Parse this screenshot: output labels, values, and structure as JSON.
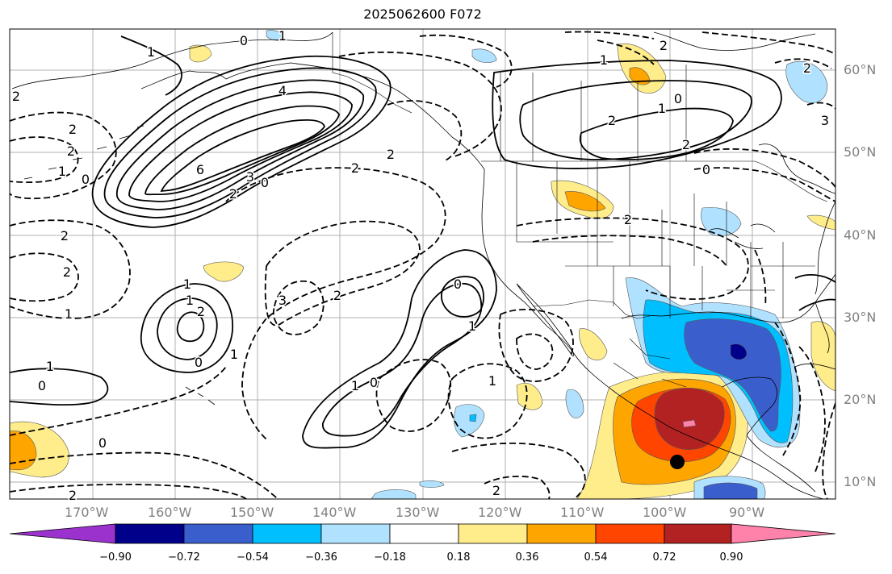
{
  "title": "2025062600 F072",
  "lat_labels": [
    "60°N",
    "50°N",
    "40°N",
    "30°N",
    "20°N",
    "10°N"
  ],
  "lon_labels": [
    "170°W",
    "160°W",
    "150°W",
    "140°W",
    "130°W",
    "120°W",
    "110°W",
    "100°W",
    "90°W"
  ],
  "contour_labels": [
    "0",
    "1",
    "2",
    "1",
    "2",
    "4",
    "6",
    "2",
    "3",
    "0",
    "2",
    "2",
    "2",
    "1",
    "0",
    "2",
    "2",
    "1",
    "1",
    "3",
    "2",
    "0",
    "2",
    "3",
    "2",
    "1",
    "0",
    "1",
    "0",
    "1",
    "2",
    "1",
    "0",
    "1",
    "0",
    "1",
    "0",
    "2",
    "2",
    "1",
    "0",
    "2",
    "2",
    "1",
    "2"
  ],
  "colorbar": {
    "ticks": [
      "−0.90",
      "−0.72",
      "−0.54",
      "−0.36",
      "−0.18",
      "0.18",
      "0.36",
      "0.54",
      "0.72",
      "0.90"
    ],
    "colors": [
      "#9b32cd",
      "#00008b",
      "#3a5fcd",
      "#00bfff",
      "#b0e2ff",
      "#ffffff",
      "#ffec8b",
      "#ffa500",
      "#ff4500",
      "#b22222",
      "#ff82ab"
    ]
  },
  "fill_colors": {
    "neg1": "#b0e2ff",
    "neg2": "#00bfff",
    "neg3": "#3a5fcd",
    "neg4": "#00008b",
    "pos1": "#ffec8b",
    "pos2": "#ffa500",
    "pos3": "#ff4500",
    "pos4": "#b22222",
    "pos5": "#ff82ab"
  }
}
